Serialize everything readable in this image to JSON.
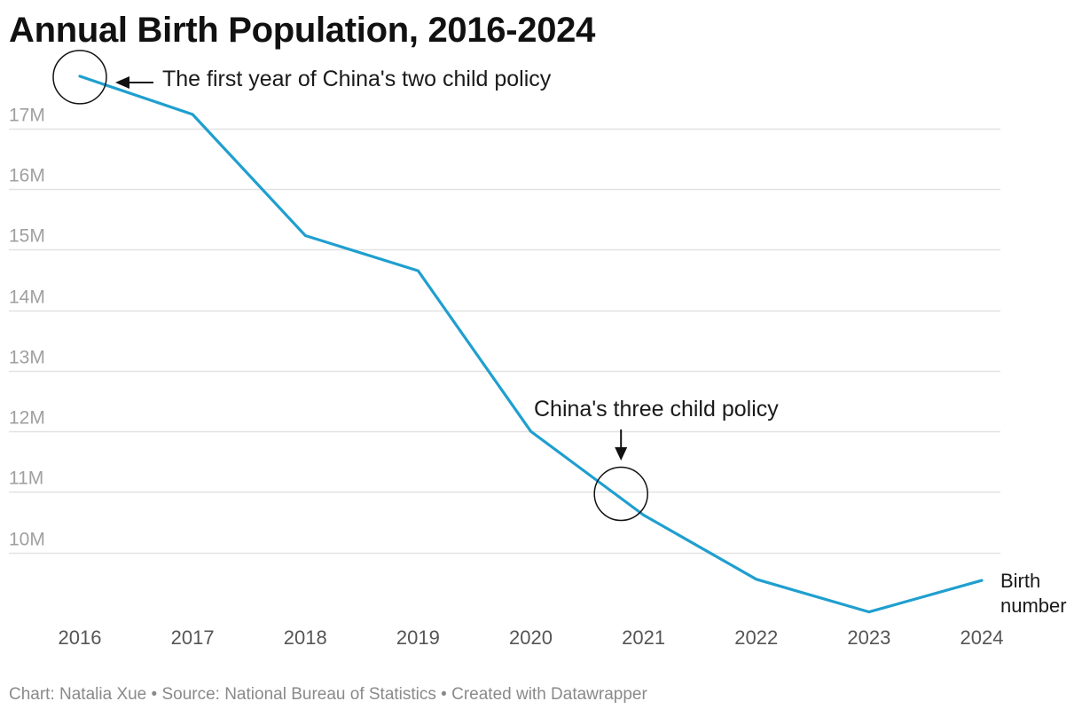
{
  "title": "Annual Birth Population, 2016-2024",
  "footer": "Chart: Natalia Xue • Source: National Bureau of Statistics • Created with Datawrapper",
  "colors": {
    "line": "#1f9fcf",
    "grid": "#e2e2e2",
    "annotation": "#111111"
  },
  "chart_data": {
    "type": "line",
    "title": "Annual Birth Population, 2016-2024",
    "xlabel": "",
    "ylabel": "",
    "x": [
      2016,
      2017,
      2018,
      2019,
      2020,
      2021,
      2022,
      2023,
      2024
    ],
    "x_tick_labels": [
      "2016",
      "2017",
      "2018",
      "2019",
      "2020",
      "2021",
      "2022",
      "2023",
      "2024"
    ],
    "series": [
      {
        "name": "Birth number",
        "label_lines": [
          "Birth",
          "number"
        ],
        "values": [
          17.86,
          17.23,
          15.23,
          14.65,
          12.0,
          10.62,
          9.56,
          9.02,
          9.54
        ]
      }
    ],
    "y_ticks": [
      10,
      11,
      12,
      13,
      14,
      15,
      16,
      17
    ],
    "y_tick_labels": [
      "10M",
      "11M",
      "12M",
      "13M",
      "14M",
      "15M",
      "16M",
      "17M"
    ],
    "ylim": [
      9.0,
      17.8
    ],
    "grid": true,
    "annotations": [
      {
        "text": "The first year of China's two child policy",
        "x": 2016,
        "y": 17.86,
        "arrow": "left"
      },
      {
        "text": "China's three child policy",
        "x": 2020.8,
        "y": 10.97,
        "arrow": "down"
      }
    ]
  }
}
